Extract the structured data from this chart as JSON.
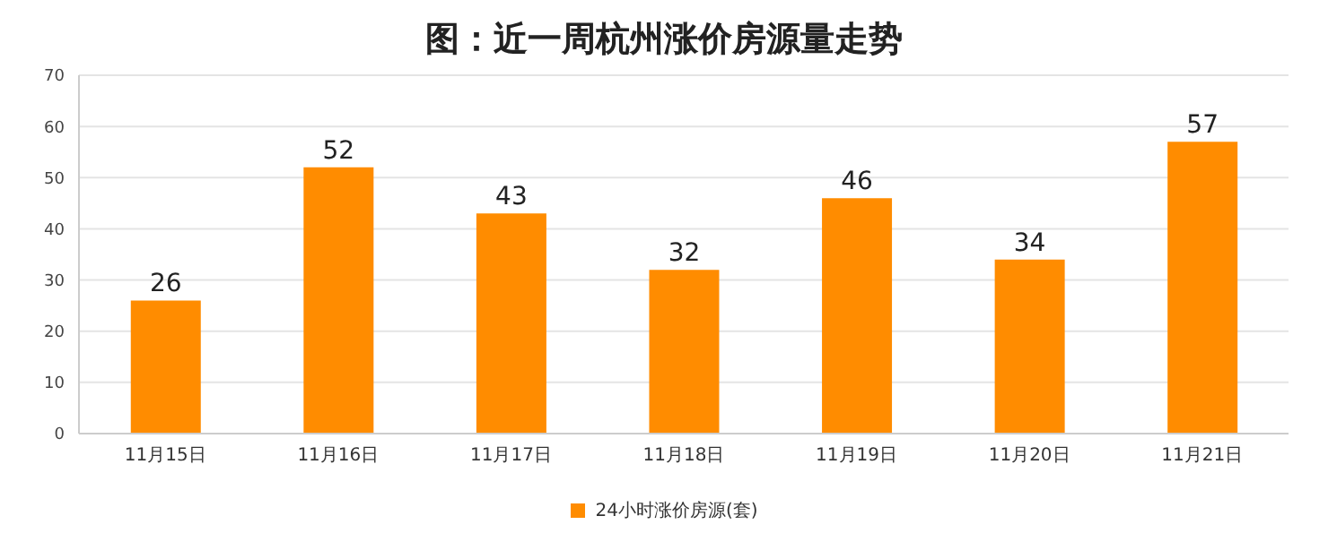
{
  "chart_data": {
    "type": "bar",
    "title": "图：近一周杭州涨价房源量走势",
    "categories": [
      "11月15日",
      "11月16日",
      "11月17日",
      "11月18日",
      "11月19日",
      "11月20日",
      "11月21日"
    ],
    "series": [
      {
        "name": "24小时涨价房源(套)",
        "color": "#ff8c00",
        "values": [
          26,
          52,
          43,
          32,
          46,
          34,
          57
        ]
      }
    ],
    "ylim": [
      0,
      70
    ],
    "yticks": [
      0,
      10,
      20,
      30,
      40,
      50,
      60,
      70
    ],
    "grid": "y",
    "legend": "bottom",
    "data_labels": true
  }
}
